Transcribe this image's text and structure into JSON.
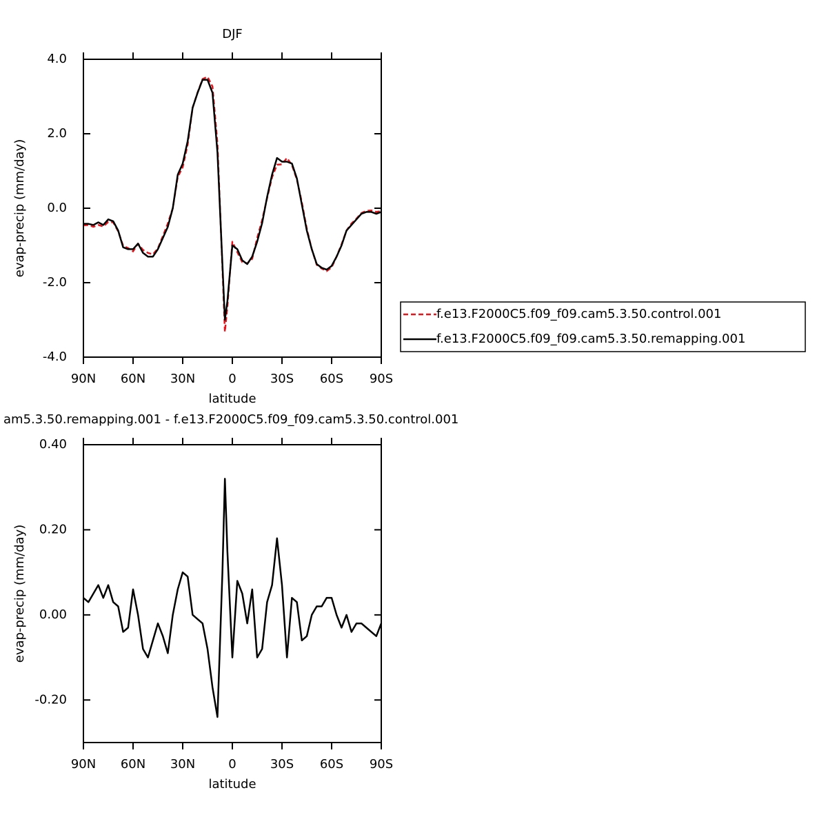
{
  "chart_data": [
    {
      "type": "line",
      "title": "DJF",
      "xlabel": "latitude",
      "ylabel": "evap-precip (mm/day)",
      "x": [
        90,
        87,
        84,
        81,
        78,
        75,
        72,
        69,
        66,
        63,
        60,
        57,
        54,
        51,
        48,
        45,
        42,
        39,
        36,
        33,
        30,
        27,
        24,
        21,
        18,
        15,
        12,
        9,
        6,
        4.5,
        3,
        0,
        -3,
        -6,
        -9,
        -12,
        -15,
        -18,
        -21,
        -24,
        -27,
        -30,
        -33,
        -36,
        -39,
        -42,
        -45,
        -48,
        -51,
        -54,
        -57,
        -60,
        -63,
        -66,
        -69,
        -72,
        -75,
        -78,
        -81,
        -84,
        -87,
        -90
      ],
      "xlim": [
        90,
        -90
      ],
      "xticks": [
        {
          "value": 90,
          "label": "90N"
        },
        {
          "value": 60,
          "label": "60N"
        },
        {
          "value": 30,
          "label": "30N"
        },
        0,
        {
          "value": -30,
          "label": "30S"
        },
        {
          "value": -60,
          "label": "60S"
        },
        {
          "value": -90,
          "label": "90S"
        }
      ],
      "ylim": [
        -4,
        4
      ],
      "yticks": [
        {
          "value": -4,
          "label": "-4.0"
        },
        {
          "value": -2,
          "label": "-2.0"
        },
        {
          "value": 0,
          "label": "0.0"
        },
        {
          "value": 2,
          "label": "2.0"
        },
        {
          "value": 4,
          "label": "4.0"
        }
      ],
      "legend": "right",
      "series": [
        {
          "name": "f.e13.F2000C5.f09_f09.cam5.3.50.control.001",
          "color": "#e8141b",
          "linestyle": "dashed",
          "values": [
            -0.46,
            -0.45,
            -0.5,
            -0.45,
            -0.49,
            -0.37,
            -0.38,
            -0.62,
            -1.01,
            -1.07,
            -1.16,
            -0.95,
            -1.12,
            -1.2,
            -1.24,
            -1.08,
            -0.75,
            -0.41,
            0.0,
            0.84,
            1.1,
            1.71,
            2.7,
            3.11,
            3.47,
            3.53,
            3.27,
            1.74,
            -1.6,
            -3.32,
            -2.65,
            -0.9,
            -1.18,
            -1.45,
            -1.48,
            -1.36,
            -0.8,
            -0.32,
            0.27,
            0.83,
            1.17,
            1.18,
            1.35,
            1.16,
            0.77,
            0.16,
            -0.55,
            -1.1,
            -1.52,
            -1.62,
            -1.69,
            -1.59,
            -1.3,
            -0.97,
            -0.6,
            -0.41,
            -0.28,
            -0.13,
            -0.07,
            -0.06,
            -0.1,
            -0.08
          ]
        },
        {
          "name": "f.e13.F2000C5.f09_f09.cam5.3.50.remapping.001",
          "color": "#000000",
          "linestyle": "solid",
          "values": [
            -0.42,
            -0.42,
            -0.45,
            -0.38,
            -0.45,
            -0.3,
            -0.35,
            -0.6,
            -1.05,
            -1.1,
            -1.1,
            -0.95,
            -1.2,
            -1.3,
            -1.3,
            -1.1,
            -0.8,
            -0.5,
            0.0,
            0.9,
            1.2,
            1.8,
            2.7,
            3.1,
            3.45,
            3.45,
            3.1,
            1.5,
            -1.5,
            -3.0,
            -2.5,
            -1.0,
            -1.1,
            -1.4,
            -1.5,
            -1.3,
            -0.9,
            -0.4,
            0.3,
            0.9,
            1.35,
            1.25,
            1.25,
            1.2,
            0.8,
            0.1,
            -0.6,
            -1.1,
            -1.5,
            -1.6,
            -1.65,
            -1.55,
            -1.3,
            -1.0,
            -0.6,
            -0.45,
            -0.3,
            -0.15,
            -0.1,
            -0.1,
            -0.15,
            -0.1
          ]
        }
      ]
    },
    {
      "type": "line",
      "title": "am5.3.50.remapping.001 - f.e13.F2000C5.f09_f09.cam5.3.50.control.001",
      "xlabel": "latitude",
      "ylabel": "evap-precip (mm/day)",
      "x": [
        90,
        87,
        84,
        81,
        78,
        75,
        72,
        69,
        66,
        63,
        60,
        57,
        54,
        51,
        48,
        45,
        42,
        39,
        36,
        33,
        30,
        27,
        24,
        21,
        18,
        15,
        12,
        9,
        6,
        4.5,
        3,
        0,
        -3,
        -6,
        -9,
        -12,
        -15,
        -18,
        -21,
        -24,
        -27,
        -30,
        -33,
        -36,
        -39,
        -42,
        -45,
        -48,
        -51,
        -54,
        -57,
        -60,
        -63,
        -66,
        -69,
        -72,
        -75,
        -78,
        -81,
        -84,
        -87,
        -90
      ],
      "xlim": [
        90,
        -90
      ],
      "xticks": [
        {
          "value": 90,
          "label": "90N"
        },
        {
          "value": 60,
          "label": "60N"
        },
        {
          "value": 30,
          "label": "30N"
        },
        0,
        {
          "value": -30,
          "label": "30S"
        },
        {
          "value": -60,
          "label": "60S"
        },
        {
          "value": -90,
          "label": "90S"
        }
      ],
      "ylim": [
        -0.3,
        0.4
      ],
      "yticks": [
        {
          "value": -0.2,
          "label": "-0.20"
        },
        {
          "value": 0,
          "label": "0.00"
        },
        {
          "value": 0.2,
          "label": "0.20"
        },
        {
          "value": 0.4,
          "label": "0.40"
        }
      ],
      "series": [
        {
          "color": "#000000",
          "linestyle": "solid",
          "values": [
            0.04,
            0.03,
            0.05,
            0.07,
            0.04,
            0.07,
            0.03,
            0.02,
            -0.04,
            -0.03,
            0.06,
            0.0,
            -0.08,
            -0.1,
            -0.06,
            -0.02,
            -0.05,
            -0.09,
            0.0,
            0.06,
            0.1,
            0.09,
            0.0,
            -0.01,
            -0.02,
            -0.08,
            -0.17,
            -0.24,
            0.1,
            0.32,
            0.15,
            -0.1,
            0.08,
            0.05,
            -0.02,
            0.06,
            -0.1,
            -0.08,
            0.03,
            0.07,
            0.18,
            0.07,
            -0.1,
            0.04,
            0.03,
            -0.06,
            -0.05,
            0.0,
            0.02,
            0.02,
            0.04,
            0.04,
            0.0,
            -0.03,
            0.0,
            -0.04,
            -0.02,
            -0.02,
            -0.03,
            -0.04,
            -0.05,
            -0.02
          ]
        }
      ]
    }
  ]
}
